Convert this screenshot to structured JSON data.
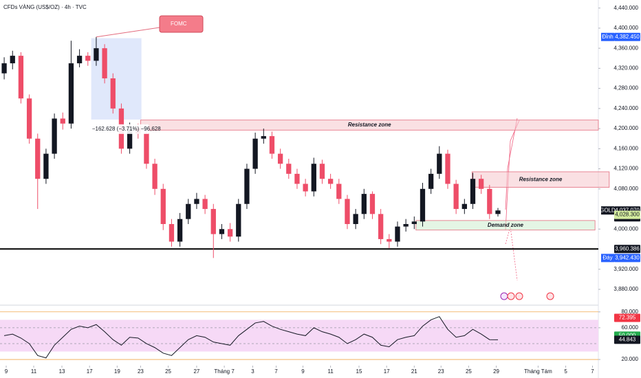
{
  "chart_data": [
    {
      "type": "candlestick",
      "title": "CFDs VÀNG (US$/OZ) · 4h · TVC",
      "xlim": [
        -0.5,
        71
      ],
      "ylim": [
        3854,
        4456
      ],
      "yticks": [
        {
          "value": 3880,
          "label": "3,880.000"
        },
        {
          "value": 3920,
          "label": "3,920.000"
        },
        {
          "value": 4000,
          "label": "4,000.000"
        },
        {
          "value": 4080,
          "label": "4,080.000"
        },
        {
          "value": 4120,
          "label": "4,120.000"
        },
        {
          "value": 4160,
          "label": "4,160.000"
        },
        {
          "value": 4200,
          "label": "4,200.000"
        },
        {
          "value": 4240,
          "label": "4,240.000"
        },
        {
          "value": 4280,
          "label": "4,280.000"
        },
        {
          "value": 4320,
          "label": "4,320.000"
        },
        {
          "value": 4360,
          "label": "4,360.000"
        },
        {
          "value": 4400,
          "label": "4,400.000"
        },
        {
          "value": 4440,
          "label": "4,440.000"
        }
      ],
      "up_color": "#131722",
      "down_color": "#ee4d68",
      "open": [
        4310,
        4330,
        4345,
        4260,
        4180,
        4100,
        4150,
        4220,
        4210,
        4330,
        4345,
        4335,
        4360,
        4300,
        4240,
        4160,
        4200,
        4190,
        4130,
        4080,
        4010,
        3975,
        4020,
        4050,
        4060,
        4040,
        3990,
        4000,
        3985,
        4050,
        4120,
        4180,
        4185,
        4150,
        4130,
        4110,
        4090,
        4075,
        4130,
        4100,
        4090,
        4060,
        4010,
        4030,
        4070,
        4030,
        3980,
        3975,
        4005,
        4010,
        4015,
        4080,
        4110,
        4150,
        4090,
        4040,
        4050,
        4100,
        4080,
        4030
      ],
      "high": [
        4342,
        4355,
        4352,
        4268,
        4190,
        4160,
        4230,
        4232,
        4375,
        4358,
        4352,
        4382.45,
        4368,
        4310,
        4250,
        4212,
        4210,
        4198,
        4140,
        4090,
        4020,
        4032,
        4060,
        4072,
        4068,
        4050,
        4010,
        4012,
        4060,
        4130,
        4192,
        4200,
        4194,
        4160,
        4140,
        4120,
        4100,
        4142,
        4138,
        4110,
        4100,
        4068,
        4040,
        4080,
        4075,
        4040,
        3990,
        4015,
        4020,
        4025,
        4092,
        4120,
        4165,
        4158,
        4098,
        4060,
        4112,
        4108,
        4088,
        4042
      ],
      "low": [
        4298,
        4318,
        4250,
        4170,
        4040,
        4090,
        4140,
        4198,
        4200,
        4322,
        4325,
        4325,
        4290,
        4230,
        4150,
        4150,
        4180,
        4120,
        4068,
        3998,
        3965,
        3965,
        4010,
        4040,
        4030,
        3942.43,
        3980,
        3975,
        3975,
        4040,
        4110,
        4170,
        4140,
        4120,
        4100,
        4080,
        4065,
        4065,
        4090,
        4080,
        4050,
        4000,
        4000,
        4020,
        4020,
        3970,
        3962,
        3965,
        3995,
        4000,
        4005,
        4070,
        4100,
        4080,
        4030,
        4030,
        4040,
        4070,
        4020,
        4025
      ],
      "close": [
        4330,
        4345,
        4260,
        4180,
        4100,
        4150,
        4220,
        4210,
        4330,
        4345,
        4335,
        4360,
        4300,
        4240,
        4160,
        4200,
        4190,
        4130,
        4080,
        4010,
        3975,
        4020,
        4050,
        4060,
        4040,
        3990,
        4000,
        3985,
        4050,
        4120,
        4180,
        4185,
        4150,
        4130,
        4110,
        4090,
        4075,
        4130,
        4100,
        4090,
        4060,
        4010,
        4030,
        4070,
        4030,
        3980,
        3975,
        4005,
        4010,
        4015,
        4080,
        4110,
        4150,
        4090,
        4040,
        4050,
        4100,
        4080,
        4030,
        4037.07
      ],
      "hline": {
        "value": 3960.386,
        "color": "#000000"
      },
      "zones": [
        {
          "label": "Resistance zone",
          "x": [
            16.3,
            71
          ],
          "y": [
            4197,
            4217
          ],
          "color": "#f5c6cc"
        },
        {
          "label": "Resistance zone",
          "x": [
            55.9,
            72.3
          ],
          "y": [
            4083,
            4114
          ],
          "color": "#f5c6cc"
        },
        {
          "label": "Demand zone",
          "x": [
            49.2,
            70.6
          ],
          "y": [
            3998,
            4017
          ],
          "color": "#cdeccd"
        },
        {
          "x": [
            10.4,
            16.4
          ],
          "y": [
            4218,
            4380
          ],
          "color": "#c7d6f7"
        }
      ],
      "annotations": [
        {
          "text": "FOMC",
          "x": 11,
          "y": 4382.45
        },
        {
          "text": "−162.628 (−3.71%) −96,628",
          "x": 10.5,
          "y": 4199
        }
      ],
      "price_labels": [
        {
          "value": 4382.45,
          "label": "4,382.450",
          "tag": "Đỉnh",
          "color": "#2962ff",
          "text_color": "#ffffff"
        },
        {
          "value": 4037.07,
          "label": "4,037.070",
          "sub": "03:48:12",
          "tag": "GOLD",
          "color": "#131722",
          "text_color": "#ffffff"
        },
        {
          "value": 4028.3,
          "label": "4,028.300",
          "color": "#d4ec9e",
          "text_color": "#131722"
        },
        {
          "value": 3960.386,
          "label": "3,960.386",
          "color": "#131722",
          "text_color": "#ffffff"
        },
        {
          "value": 3942.43,
          "label": "3,942.430",
          "tag": "Đáy",
          "color": "#2962ff",
          "text_color": "#ffffff"
        }
      ]
    },
    {
      "type": "line",
      "xlim": [
        -0.5,
        71
      ],
      "ylim": [
        14,
        85
      ],
      "yticks": [
        {
          "value": 20,
          "label": "20.000"
        },
        {
          "value": 60,
          "label": "60.000"
        },
        {
          "value": 80,
          "label": "80.000"
        }
      ],
      "xticks": [
        {
          "value": 0.24,
          "label": "9"
        },
        {
          "value": 3.53,
          "label": "11"
        },
        {
          "value": 6.9,
          "label": "13"
        },
        {
          "value": 10.2,
          "label": "17"
        },
        {
          "value": 13.5,
          "label": "19"
        },
        {
          "value": 16.3,
          "label": "23"
        },
        {
          "value": 19.6,
          "label": "25"
        },
        {
          "value": 23,
          "label": "27"
        },
        {
          "value": 26.3,
          "label": "Tháng 7"
        },
        {
          "value": 29.7,
          "label": "3"
        },
        {
          "value": 32.5,
          "label": "7"
        },
        {
          "value": 35.7,
          "label": "9"
        },
        {
          "value": 39,
          "label": "11"
        },
        {
          "value": 42.4,
          "label": "15"
        },
        {
          "value": 45.7,
          "label": "17"
        },
        {
          "value": 49,
          "label": "21"
        },
        {
          "value": 52.2,
          "label": "23"
        },
        {
          "value": 55.5,
          "label": "25"
        },
        {
          "value": 58.8,
          "label": "29"
        },
        {
          "value": 63.8,
          "label": "Tháng Tám"
        },
        {
          "value": 67.1,
          "label": "5"
        },
        {
          "value": 70.3,
          "label": "7"
        }
      ],
      "values": [
        50,
        52,
        47,
        40,
        25,
        22,
        38,
        48,
        58,
        62,
        60,
        64,
        55,
        45,
        38,
        48,
        47,
        40,
        35,
        28,
        25,
        35,
        45,
        50,
        48,
        42,
        40,
        38,
        50,
        58,
        66,
        68,
        62,
        58,
        55,
        52,
        50,
        60,
        55,
        52,
        48,
        40,
        45,
        52,
        48,
        38,
        36,
        45,
        48,
        50,
        62,
        70,
        74,
        58,
        48,
        50,
        58,
        52,
        45,
        44.843
      ],
      "color": "#131722",
      "band": [
        30,
        70
      ],
      "band_color": "#f6d9f6",
      "levels": [
        60,
        40
      ],
      "bounds": [
        20,
        80
      ],
      "bounds_color": "#f0a64a",
      "price_labels": [
        {
          "value": 72.395,
          "label": "72.395",
          "color": "#f23645",
          "text_color": "#ffffff"
        },
        {
          "value": 50,
          "label": "50.000",
          "color": "#22ab4c",
          "text_color": "#ffffff"
        },
        {
          "value": 44.843,
          "label": "44.843",
          "color": "#131722",
          "text_color": "#ffffff"
        }
      ]
    }
  ]
}
